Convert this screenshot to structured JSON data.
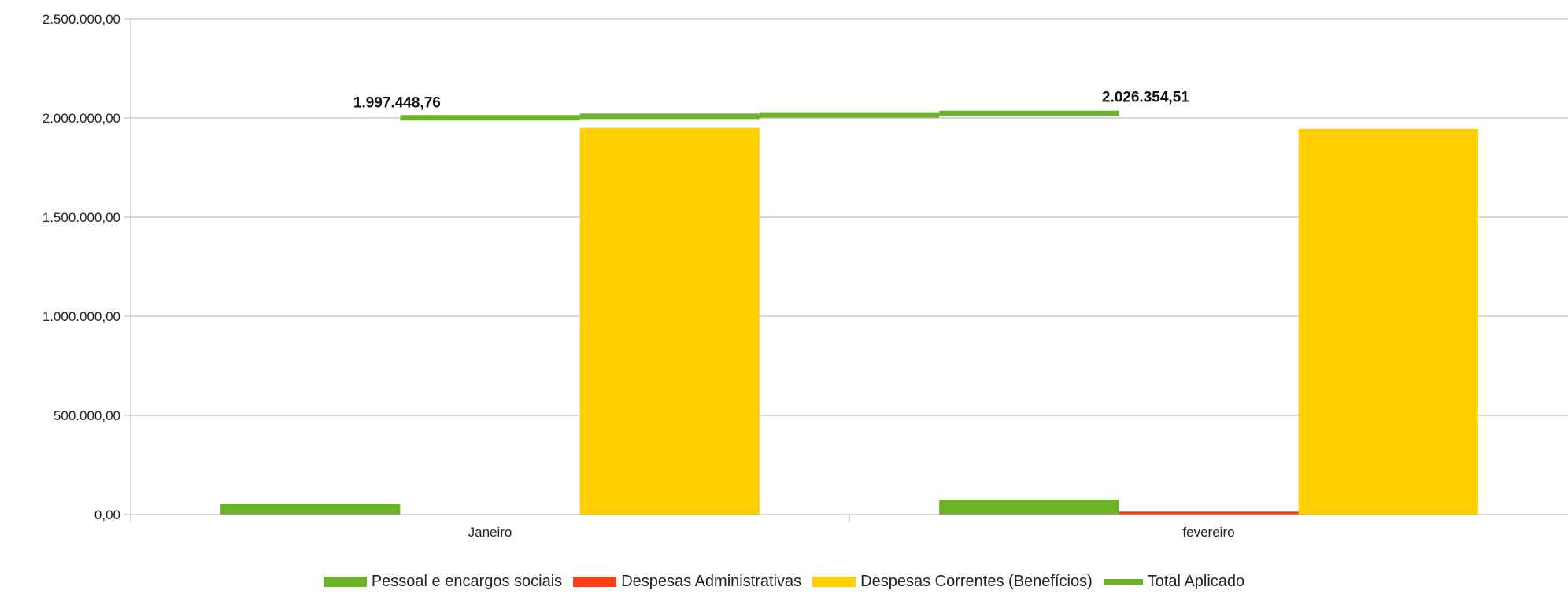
{
  "chart_data": {
    "type": "bar",
    "categories": [
      "Janeiro",
      "fevereiro"
    ],
    "ylim": [
      0,
      2500000
    ],
    "ytick_values": [
      0,
      500000,
      1000000,
      1500000,
      2000000,
      2500000
    ],
    "ytick_labels": [
      "0,00",
      "500.000,00",
      "1.000.000,00",
      "1.500.000,00",
      "2.000.000,00",
      "2.500.000,00"
    ],
    "grid": true,
    "legend_position": "bottom",
    "series": [
      {
        "name": "Pessoal e encargos sociais",
        "kind": "bar",
        "color": "#6db327",
        "values": [
          55000,
          75000
        ]
      },
      {
        "name": "Despesas Administrativas",
        "kind": "bar",
        "color": "#ff4014",
        "values": [
          0,
          15000
        ]
      },
      {
        "name": "Despesas Correntes (Benefícios)",
        "kind": "bar",
        "color": "#ffcf00",
        "values": [
          1950000,
          1945000
        ]
      },
      {
        "name": "Total Aplicado",
        "kind": "line",
        "color": "#6db327",
        "values": [
          1997448.76,
          2026354.51
        ]
      }
    ],
    "data_labels": [
      "1.997.448,76",
      "2.026.354,51"
    ]
  }
}
